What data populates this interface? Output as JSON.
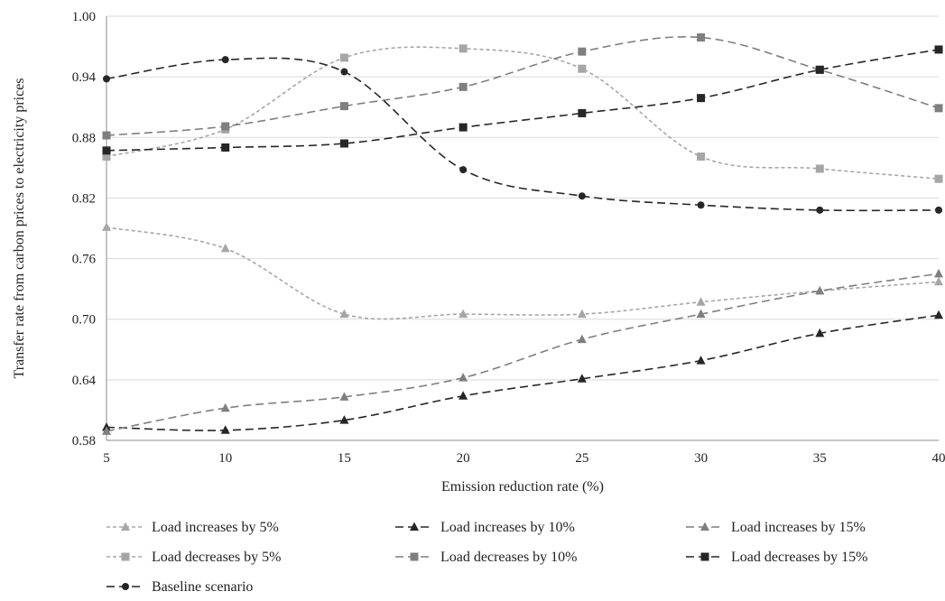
{
  "chart_data": {
    "type": "line",
    "title": "",
    "xlabel": "Emission reduction rate  (%)",
    "ylabel": "Transfer rate from carbon prices to electricity prices",
    "x": [
      5,
      10,
      15,
      20,
      25,
      30,
      35,
      40
    ],
    "xlim": [
      5,
      40
    ],
    "ylim": [
      0.58,
      1.0
    ],
    "yticks": [
      "0.58",
      "0.64",
      "0.70",
      "0.76",
      "0.82",
      "0.88",
      "0.94",
      "1.00"
    ],
    "xticks": [
      "5",
      "10",
      "15",
      "20",
      "25",
      "30",
      "35",
      "40"
    ],
    "grid": "horizontal",
    "legend_position": "bottom",
    "smooth": true,
    "series": [
      {
        "name": "Load increases by 5%",
        "marker": "triangle",
        "color": "#a6a6a6",
        "dash": "short",
        "values": [
          0.791,
          0.77,
          0.705,
          0.705,
          0.705,
          0.717,
          0.728,
          0.737
        ]
      },
      {
        "name": "Load increases by 10%",
        "marker": "triangle",
        "color": "#262626",
        "dash": "long",
        "values": [
          0.593,
          0.59,
          0.6,
          0.624,
          0.641,
          0.659,
          0.686,
          0.704
        ]
      },
      {
        "name": "Load increases by 15%",
        "marker": "triangle",
        "color": "#7f7f7f",
        "dash": "long",
        "values": [
          0.589,
          0.612,
          0.623,
          0.642,
          0.68,
          0.705,
          0.728,
          0.745
        ]
      },
      {
        "name": "Load decreases by 5%",
        "marker": "square",
        "color": "#a6a6a6",
        "dash": "short",
        "values": [
          0.861,
          0.888,
          0.959,
          0.968,
          0.948,
          0.861,
          0.849,
          0.839
        ]
      },
      {
        "name": "Load decreases by 10%",
        "marker": "square",
        "color": "#7f7f7f",
        "dash": "long",
        "values": [
          0.882,
          0.891,
          0.911,
          0.93,
          0.965,
          0.979,
          0.947,
          0.909
        ]
      },
      {
        "name": "Load decreases by 15%",
        "marker": "square",
        "color": "#262626",
        "dash": "long",
        "values": [
          0.867,
          0.87,
          0.874,
          0.89,
          0.904,
          0.919,
          0.947,
          0.967
        ]
      },
      {
        "name": "Baseline scenario",
        "marker": "circle",
        "color": "#262626",
        "dash": "long",
        "values": [
          0.938,
          0.957,
          0.945,
          0.848,
          0.822,
          0.813,
          0.808,
          0.808
        ]
      }
    ]
  }
}
